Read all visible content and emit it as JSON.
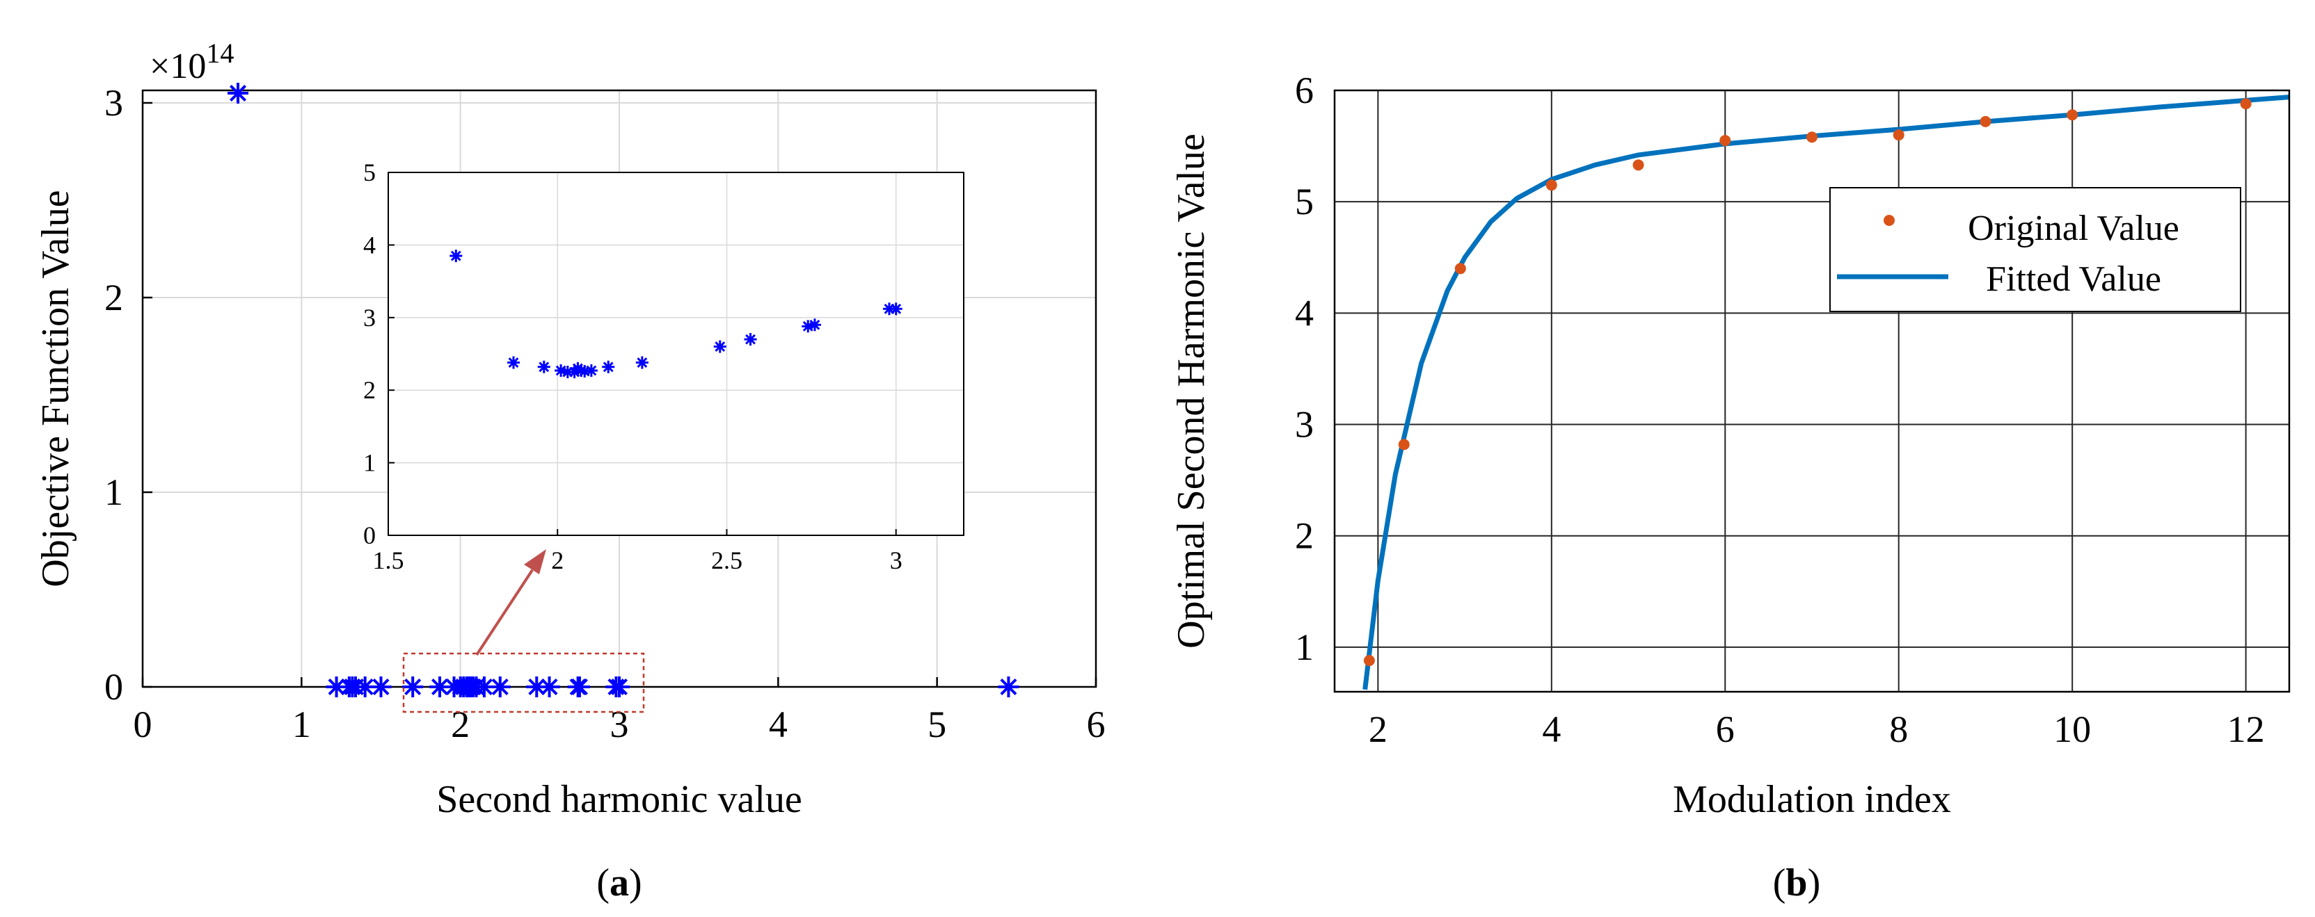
{
  "panel_labels": {
    "a": "(a)",
    "a_letter": "a",
    "b": "(b)",
    "b_letter": "b"
  },
  "colors": {
    "scatter_marker": "#0000ff",
    "original_point": "#d95319",
    "fitted_line": "#0072bd",
    "zoom_box": "#c0392b",
    "arrow": "#c0504d",
    "grid": "#d9d9d9",
    "grid_dark": "#262626"
  },
  "icons": {
    "zoom_arrow": "arrow-icon"
  },
  "chart_data": [
    {
      "type": "scatter",
      "marker": "asterisk",
      "xlabel": "Second harmonic value",
      "ylabel": "Objective Function Value",
      "y_multiplier": "×10",
      "y_multiplier_exp": "14",
      "xlim": [
        0,
        6
      ],
      "ylim": [
        0,
        3.05
      ],
      "xticks": [
        0,
        1,
        2,
        3,
        4,
        5,
        6
      ],
      "yticks": [
        0,
        1,
        2,
        3
      ],
      "grid": true,
      "series": [
        {
          "x": [
            0.6,
            1.22,
            1.3,
            1.32,
            1.34,
            1.4,
            1.5,
            1.7,
            1.87,
            1.96,
            2.0,
            2.02,
            2.04,
            2.05,
            2.06,
            2.07,
            2.08,
            2.1,
            2.15,
            2.25,
            2.48,
            2.56,
            2.74,
            2.75,
            2.98,
            3.0,
            5.45
          ],
          "y": [
            3.05,
            0,
            0,
            0,
            0,
            0,
            0,
            0,
            0,
            0,
            0,
            0,
            0,
            0,
            0,
            0,
            0,
            0,
            0,
            0,
            0,
            0,
            0,
            0,
            0,
            0,
            0
          ]
        }
      ]
    },
    {
      "type": "scatter",
      "role": "inset",
      "marker": "asterisk",
      "xlim": [
        1.5,
        3.2
      ],
      "ylim": [
        0,
        5
      ],
      "xticks": [
        1.5,
        2,
        2.5,
        3
      ],
      "yticks": [
        0,
        1,
        2,
        3,
        4,
        5
      ],
      "grid": true,
      "series": [
        {
          "x": [
            1.7,
            1.87,
            1.96,
            2.01,
            2.03,
            2.05,
            2.06,
            2.07,
            2.08,
            2.1,
            2.15,
            2.25,
            2.48,
            2.57,
            2.74,
            2.76,
            2.98,
            3.0
          ],
          "y": [
            3.85,
            2.38,
            2.32,
            2.27,
            2.25,
            2.25,
            2.3,
            2.27,
            2.26,
            2.27,
            2.32,
            2.38,
            2.6,
            2.7,
            2.88,
            2.9,
            3.12,
            3.12
          ]
        }
      ]
    },
    {
      "type": "line",
      "xlabel": "Modulation index",
      "ylabel": "Optimal Second Harmonic Value",
      "xlim": [
        1.5,
        12.5
      ],
      "ylim": [
        0.6,
        6
      ],
      "xticks": [
        2,
        4,
        6,
        8,
        10,
        12
      ],
      "yticks": [
        1,
        2,
        3,
        4,
        5,
        6
      ],
      "grid": true,
      "legend_position": "upper-right",
      "series": [
        {
          "name": "Original Value",
          "style": "markers",
          "x": [
            1.9,
            2.3,
            2.95,
            4.0,
            5.0,
            6.0,
            7.0,
            8.0,
            9.0,
            10.0,
            12.0
          ],
          "y": [
            0.88,
            2.82,
            4.4,
            5.15,
            5.33,
            5.55,
            5.58,
            5.6,
            5.72,
            5.78,
            5.88
          ]
        },
        {
          "name": "Fitted Value",
          "style": "line",
          "x": [
            1.85,
            2.0,
            2.2,
            2.5,
            2.8,
            3.0,
            3.3,
            3.6,
            4.0,
            4.5,
            5.0,
            6.0,
            7.0,
            8.0,
            9.0,
            10.0,
            11.0,
            12.0,
            12.5
          ],
          "y": [
            0.62,
            1.6,
            2.55,
            3.55,
            4.2,
            4.5,
            4.82,
            5.03,
            5.2,
            5.33,
            5.42,
            5.52,
            5.59,
            5.65,
            5.72,
            5.78,
            5.85,
            5.91,
            5.94
          ]
        }
      ]
    }
  ]
}
